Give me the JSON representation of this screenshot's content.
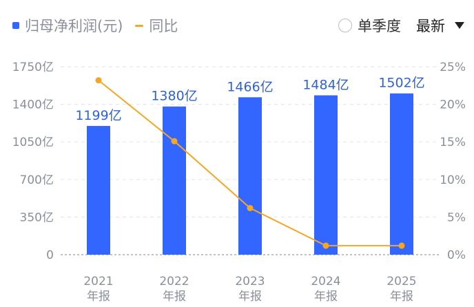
{
  "legend": {
    "bar_label": "归母净利润(元)",
    "line_label": "同比",
    "bar_color": "#3366ff",
    "line_color": "#f5a623"
  },
  "controls": {
    "season_label": "单季度",
    "latest_label": "最新"
  },
  "chart_data": {
    "type": "bar",
    "categories": [
      "2021年报",
      "2022年报",
      "2023年报",
      "2024年报",
      "2025年报"
    ],
    "category_years": [
      "2021",
      "2022",
      "2023",
      "2024",
      "2025"
    ],
    "category_suffix": "年报",
    "series": [
      {
        "name": "归母净利润(元)",
        "type": "bar",
        "axis": "left",
        "values": [
          1199,
          1380,
          1466,
          1484,
          1502
        ],
        "value_labels": [
          "1199亿",
          "1380亿",
          "1466亿",
          "1484亿",
          "1502亿"
        ]
      },
      {
        "name": "同比",
        "type": "line",
        "axis": "right",
        "values": [
          23.2,
          15.1,
          6.2,
          1.2,
          1.2
        ]
      }
    ],
    "y_left": {
      "ticks": [
        0,
        350,
        700,
        1050,
        1400,
        1750
      ],
      "tick_labels": [
        "0",
        "350亿",
        "700亿",
        "1050亿",
        "1400亿",
        "1750亿"
      ],
      "ylim": [
        0,
        1750
      ]
    },
    "y_right": {
      "ticks": [
        0,
        5,
        10,
        15,
        20,
        25
      ],
      "tick_labels": [
        "0%",
        "5%",
        "10%",
        "15%",
        "20%",
        "25%"
      ],
      "ylim": [
        0,
        25
      ]
    },
    "grid": true,
    "legend_position": "top-left"
  }
}
